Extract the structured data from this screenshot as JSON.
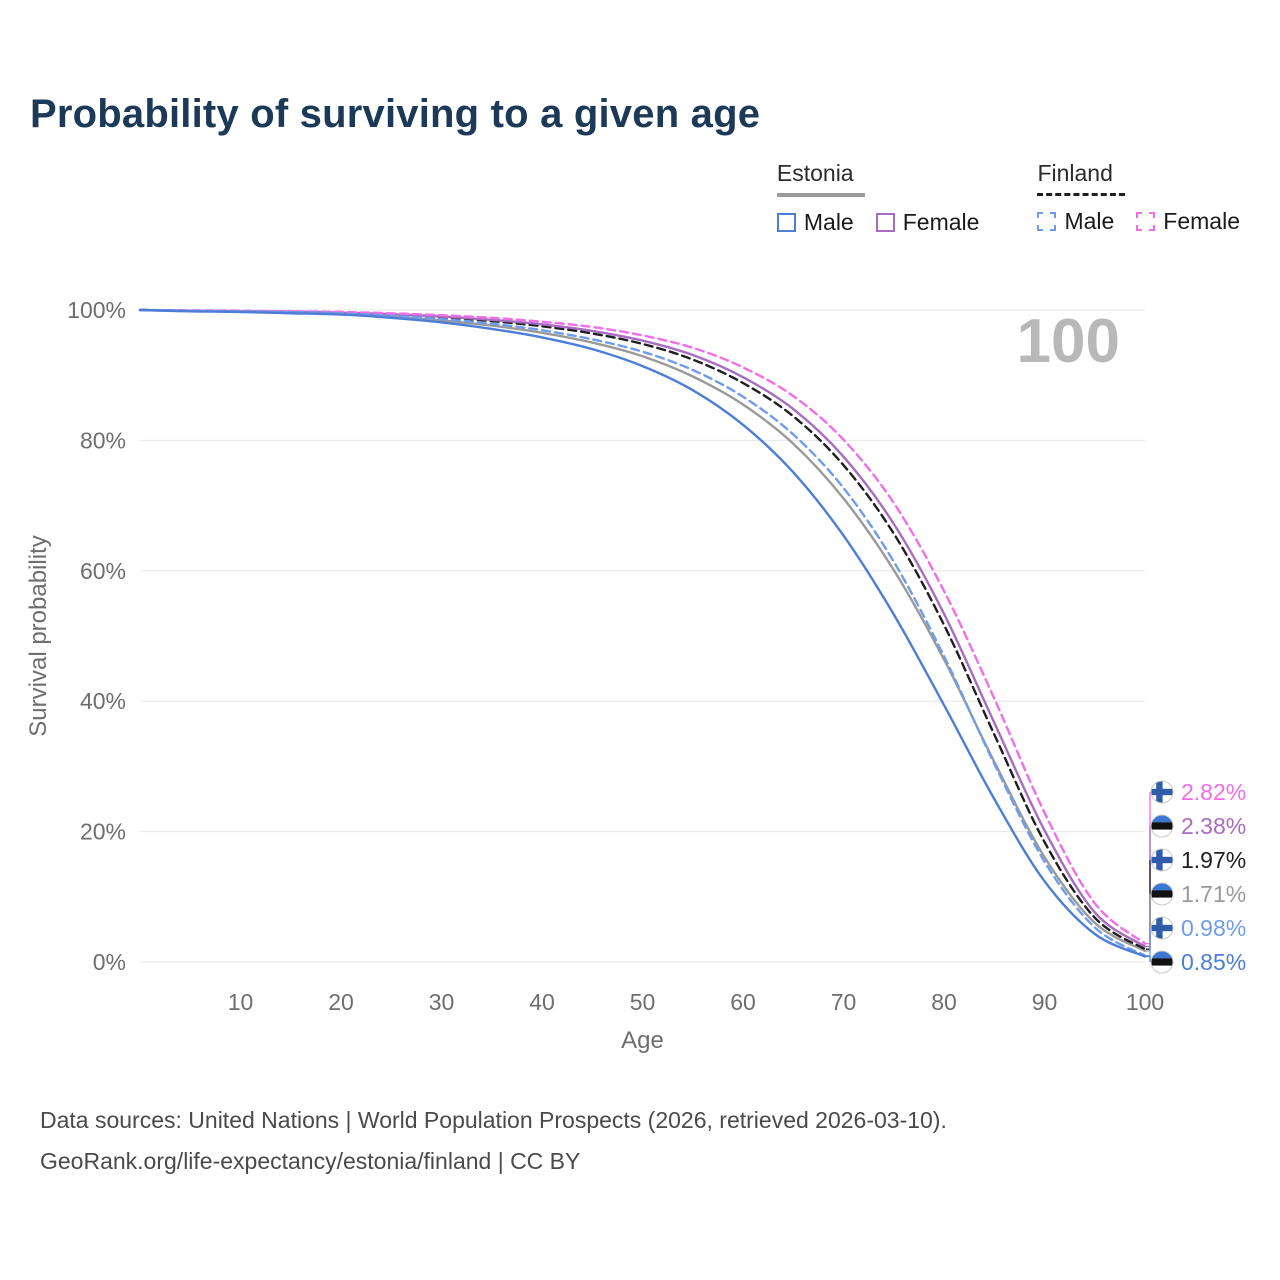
{
  "title": "Probability of surviving to a given age",
  "legend": {
    "groups": [
      {
        "name": "Estonia",
        "dashed": false,
        "line_color": "#9a9a9a",
        "items": [
          {
            "label": "Male",
            "color": "#4c7ed8",
            "dashed": false
          },
          {
            "label": "Female",
            "color": "#a86cc0",
            "dashed": false
          }
        ]
      },
      {
        "name": "Finland",
        "dashed": true,
        "line_color": "#1f1f1f",
        "items": [
          {
            "label": "Male",
            "color": "#6f9ceb",
            "dashed": true
          },
          {
            "label": "Female",
            "color": "#f26ee8",
            "dashed": true
          }
        ]
      }
    ]
  },
  "chart_data": {
    "type": "line",
    "title": "Probability of surviving to a given age",
    "xlabel": "Age",
    "ylabel": "Survival probability",
    "xlim": [
      0,
      100
    ],
    "ylim": [
      0,
      100
    ],
    "xticks": [
      10,
      20,
      30,
      40,
      50,
      60,
      70,
      80,
      90,
      100
    ],
    "yticks": [
      0,
      20,
      40,
      60,
      80,
      100
    ],
    "ytick_suffix": "%",
    "grid": "horizontal",
    "legend_position": "top-right",
    "annotation": "100",
    "x": [
      0,
      5,
      10,
      15,
      20,
      25,
      30,
      35,
      40,
      45,
      50,
      55,
      60,
      65,
      70,
      75,
      80,
      85,
      90,
      95,
      100
    ],
    "series": [
      {
        "id": "estonia-all",
        "name": "Estonia (all)",
        "country": "estonia",
        "color": "#9a9a9a",
        "dashed": false,
        "end_label": "1.71%",
        "values": [
          100,
          99.85,
          99.75,
          99.65,
          99.4,
          99.0,
          98.4,
          97.6,
          96.5,
          95.0,
          92.9,
          89.8,
          85.5,
          79.5,
          71.1,
          60.1,
          46.4,
          30.7,
          16.1,
          6.0,
          1.71
        ]
      },
      {
        "id": "finland-all",
        "name": "Finland (all)",
        "country": "finland",
        "color": "#1f1f1f",
        "dashed": true,
        "end_label": "1.97%",
        "values": [
          100,
          99.9,
          99.85,
          99.75,
          99.6,
          99.3,
          98.9,
          98.3,
          97.5,
          96.4,
          94.8,
          92.4,
          88.8,
          83.7,
          76.2,
          65.7,
          51.7,
          34.9,
          18.4,
          6.8,
          1.97
        ]
      },
      {
        "id": "estonia-female",
        "name": "Estonia Female",
        "country": "estonia",
        "color": "#a86cc0",
        "dashed": false,
        "end_label": "2.38%",
        "values": [
          100,
          99.9,
          99.8,
          99.75,
          99.6,
          99.35,
          99.0,
          98.5,
          97.8,
          96.8,
          95.3,
          93.1,
          89.7,
          84.8,
          77.5,
          67.2,
          53.4,
          36.7,
          20.2,
          7.6,
          2.38
        ]
      },
      {
        "id": "finland-female",
        "name": "Finland Female",
        "country": "finland",
        "color": "#f26ee8",
        "dashed": true,
        "end_label": "2.82%",
        "values": [
          100,
          99.95,
          99.9,
          99.8,
          99.7,
          99.5,
          99.2,
          98.8,
          98.2,
          97.4,
          96.1,
          94.2,
          91.2,
          86.8,
          80.1,
          70.4,
          56.9,
          40.4,
          22.9,
          9.0,
          2.82
        ]
      },
      {
        "id": "finland-male",
        "name": "Finland Male",
        "country": "finland",
        "color": "#6f9ceb",
        "dashed": true,
        "end_label": "0.98%",
        "values": [
          100,
          99.9,
          99.8,
          99.7,
          99.5,
          99.1,
          98.6,
          97.9,
          96.9,
          95.5,
          93.6,
          90.8,
          86.7,
          80.9,
          72.7,
          61.4,
          46.9,
          30.4,
          15.4,
          5.3,
          0.98
        ]
      },
      {
        "id": "estonia-male",
        "name": "Estonia Male",
        "country": "estonia",
        "color": "#4c7ed8",
        "dashed": false,
        "end_label": "0.85%",
        "values": [
          100,
          99.8,
          99.7,
          99.5,
          99.3,
          98.8,
          98.1,
          97.1,
          95.8,
          94.0,
          91.4,
          87.7,
          82.4,
          75.1,
          65.4,
          53.3,
          39.4,
          25.0,
          12.4,
          4.3,
          0.85
        ]
      }
    ]
  },
  "footer": {
    "line1": "Data sources: United Nations | World Population Prospects (2026, retrieved 2026-03-10).",
    "line2": "GeoRank.org/life-expectancy/estonia/finland | CC BY"
  },
  "colors": {
    "title": "#1c3a57",
    "axis_text": "#6e6e6e",
    "gridline": "#e6e6e6",
    "annotation": "#b8b8b8",
    "footer_text": "#4a4a4a"
  }
}
